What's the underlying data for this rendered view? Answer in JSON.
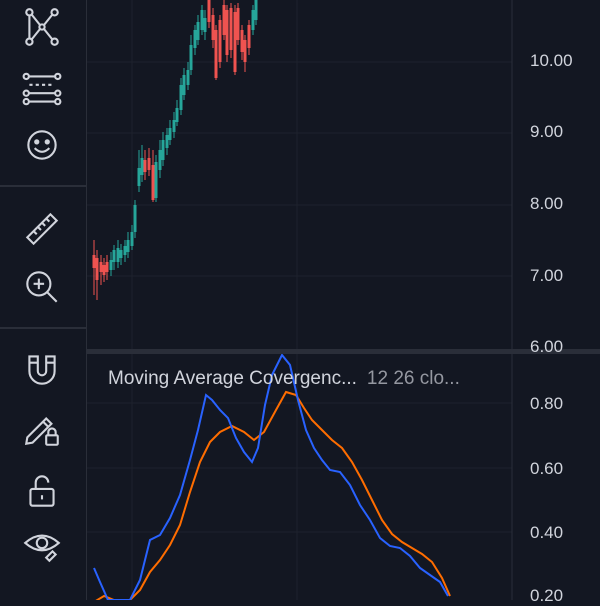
{
  "toolbar": {
    "tools": [
      {
        "name": "pattern-tool",
        "icon": "pattern-icon"
      },
      {
        "name": "prediction-tool",
        "icon": "prediction-icon"
      },
      {
        "name": "emoji-tool",
        "icon": "smiley-icon"
      },
      {
        "name": "measure-tool",
        "icon": "ruler-icon"
      },
      {
        "name": "zoom-tool",
        "icon": "zoom-in-icon"
      },
      {
        "name": "magnet-tool",
        "icon": "magnet-icon"
      },
      {
        "name": "lock-drawings-tool",
        "icon": "pencil-lock-icon"
      },
      {
        "name": "lock-all-tool",
        "icon": "unlock-icon"
      },
      {
        "name": "hide-tool",
        "icon": "eye-icon"
      }
    ]
  },
  "price_axis": {
    "labels": [
      "10.00",
      "9.00",
      "8.00",
      "7.00",
      "6.00"
    ]
  },
  "macd_pane": {
    "title": "Moving Average Covergenc...",
    "params": "12 26 clo...",
    "axis_labels": [
      "0.80",
      "0.60",
      "0.40",
      "0.20"
    ]
  },
  "colors": {
    "background": "#131722",
    "grid": "#1e222d",
    "up": "#26a69a",
    "down": "#ef5350",
    "macd_line": "#2962ff",
    "signal_line": "#ff6d00"
  }
}
